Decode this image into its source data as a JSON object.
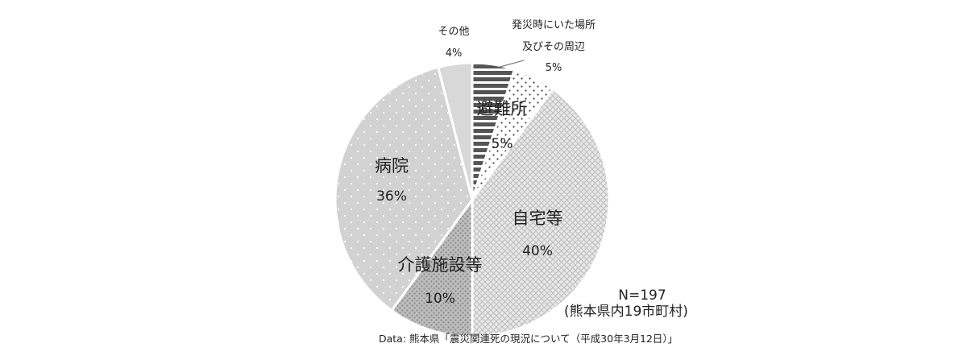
{
  "chart_data": {
    "type": "pie",
    "slices": [
      {
        "name": "発災時にいた場所",
        "name2": "及びその周辺",
        "percent_label": "5%",
        "value": 5,
        "color": "#555555"
      },
      {
        "name": "避難所",
        "percent_label": "5%",
        "value": 5,
        "color": "#444444"
      },
      {
        "name": "自宅等",
        "percent_label": "40%",
        "value": 40,
        "color": "#bdbdbd"
      },
      {
        "name": "介護施設等",
        "percent_label": "10%",
        "value": 10,
        "color": "#999999"
      },
      {
        "name": "病院",
        "percent_label": "36%",
        "value": 36,
        "color": "#cfcfcf"
      },
      {
        "name": "その他",
        "percent_label": "4%",
        "value": 4,
        "color": "#d8d8d8"
      }
    ],
    "annotation": {
      "n_label": "N=197",
      "scope_label": "(熊本県内19市町村)"
    },
    "source": "Data: 熊本県「震災関連死の現況について（平成30年3月12日）」",
    "legend": "none"
  }
}
